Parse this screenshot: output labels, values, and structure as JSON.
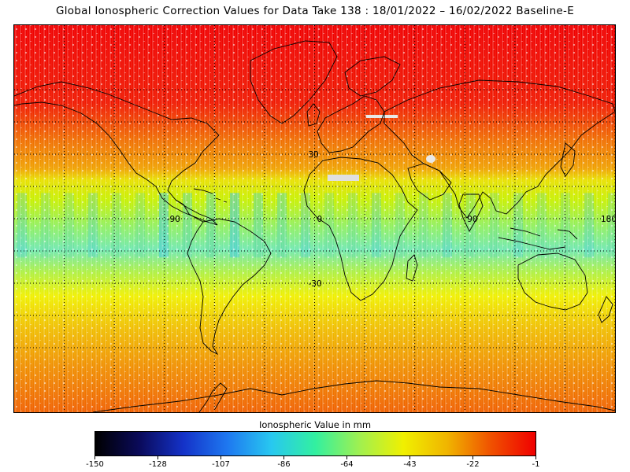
{
  "title": "Global Ionospheric Correction Values for Data Take 138 : 18/01/2022 – 16/02/2022 Baseline-E",
  "colorbar": {
    "title": "Ionospheric Value in mm",
    "min": -150,
    "max": -1,
    "ticks": [
      "-150",
      "-128",
      "-107",
      "-86",
      "-64",
      "-43",
      "-22",
      "-1"
    ],
    "stops": [
      "#000000",
      "#0a0a5a",
      "#1432c8",
      "#1e78f0",
      "#28c8f0",
      "#32f0a0",
      "#a0f050",
      "#f0f000",
      "#f0b400",
      "#f05000",
      "#f00000"
    ]
  },
  "chart_data": {
    "type": "heatmap",
    "projection": "equirectangular",
    "lon_range": [
      -180,
      180
    ],
    "lat_range": [
      -90,
      90
    ],
    "grid_lines_lon": [
      -90,
      0,
      90,
      180
    ],
    "grid_lines_lat": [
      30,
      -30
    ],
    "grid_labels": [
      {
        "text": "-90",
        "lon": -90,
        "lat": 0
      },
      {
        "text": "0",
        "lon": 0,
        "lat": 0
      },
      {
        "text": "90",
        "lon": 90,
        "lat": 0
      },
      {
        "text": "180",
        "lon": 180,
        "lat": 0
      },
      {
        "text": "30",
        "lon": 0,
        "lat": 30
      },
      {
        "text": "-30",
        "lon": 0,
        "lat": -30
      }
    ],
    "value_by_latitude_band": [
      {
        "lat_from": 90,
        "lat_to": 60,
        "value": -3
      },
      {
        "lat_from": 60,
        "lat_to": 45,
        "value": -10
      },
      {
        "lat_from": 45,
        "lat_to": 28,
        "value": -22
      },
      {
        "lat_from": 28,
        "lat_to": 15,
        "value": -40
      },
      {
        "lat_from": 15,
        "lat_to": -10,
        "value": -55
      },
      {
        "lat_from": -10,
        "lat_to": -25,
        "value": -45
      },
      {
        "lat_from": -25,
        "lat_to": -45,
        "value": -33
      },
      {
        "lat_from": -45,
        "lat_to": -90,
        "value": -25
      }
    ],
    "grid_on": true
  }
}
